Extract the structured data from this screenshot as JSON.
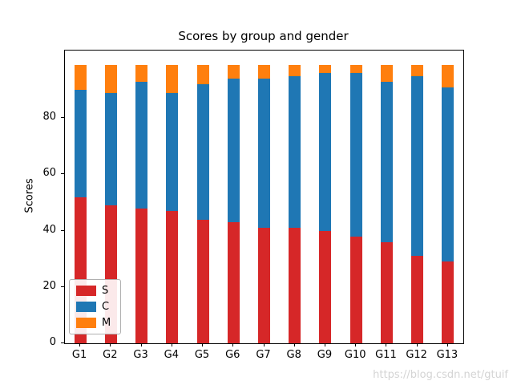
{
  "chart_data": {
    "type": "bar",
    "stacked": true,
    "title": "Scores by group and gender",
    "xlabel": "",
    "ylabel": "Scores",
    "categories": [
      "G1",
      "G2",
      "G3",
      "G4",
      "G5",
      "G6",
      "G7",
      "G8",
      "G9",
      "G10",
      "G11",
      "G12",
      "G13"
    ],
    "series": [
      {
        "name": "S",
        "color": "#d62728",
        "values": [
          52,
          49,
          48,
          47,
          44,
          43,
          41,
          41,
          40,
          38,
          36,
          31,
          29
        ]
      },
      {
        "name": "C",
        "color": "#1f77b4",
        "values": [
          38,
          40,
          45,
          42,
          48,
          51,
          53,
          54,
          56,
          58,
          57,
          64,
          62
        ]
      },
      {
        "name": "M",
        "color": "#ff7f0e",
        "values": [
          9,
          10,
          6,
          10,
          7,
          5,
          5,
          4,
          3,
          3,
          6,
          4,
          8
        ]
      }
    ],
    "ylim": [
      0,
      104
    ],
    "yticks": [
      0,
      20,
      40,
      60,
      80
    ],
    "legend_position": "lower left",
    "grid": false
  },
  "watermark": "https://blog.csdn.net/gtuif"
}
